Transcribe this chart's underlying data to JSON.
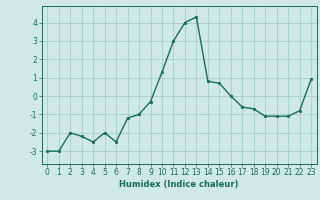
{
  "x": [
    0,
    1,
    2,
    3,
    4,
    5,
    6,
    7,
    8,
    9,
    10,
    11,
    12,
    13,
    14,
    15,
    16,
    17,
    18,
    19,
    20,
    21,
    22,
    23
  ],
  "y": [
    -3.0,
    -3.0,
    -2.0,
    -2.2,
    -2.5,
    -2.0,
    -2.5,
    -1.2,
    -1.0,
    -0.3,
    1.3,
    3.0,
    4.0,
    4.3,
    0.8,
    0.7,
    0.0,
    -0.6,
    -0.7,
    -1.1,
    -1.1,
    -1.1,
    -0.8,
    0.9
  ],
  "line_color": "#1a6b5a",
  "marker": "o",
  "markersize": 1.8,
  "linewidth": 1.0,
  "xlabel": "Humidex (Indice chaleur)",
  "xlim": [
    -0.5,
    23.5
  ],
  "ylim": [
    -3.7,
    4.9
  ],
  "yticks": [
    -3,
    -2,
    -1,
    0,
    1,
    2,
    3,
    4
  ],
  "xticks": [
    0,
    1,
    2,
    3,
    4,
    5,
    6,
    7,
    8,
    9,
    10,
    11,
    12,
    13,
    14,
    15,
    16,
    17,
    18,
    19,
    20,
    21,
    22,
    23
  ],
  "bg_color": "#cfe9e5",
  "grid_color": "#aed4cf",
  "line_grid_color": "#9dc8c3",
  "tick_color": "#1a6b5a",
  "label_color": "#1a6b5a",
  "xlabel_fontsize": 6.0,
  "tick_fontsize": 5.5
}
